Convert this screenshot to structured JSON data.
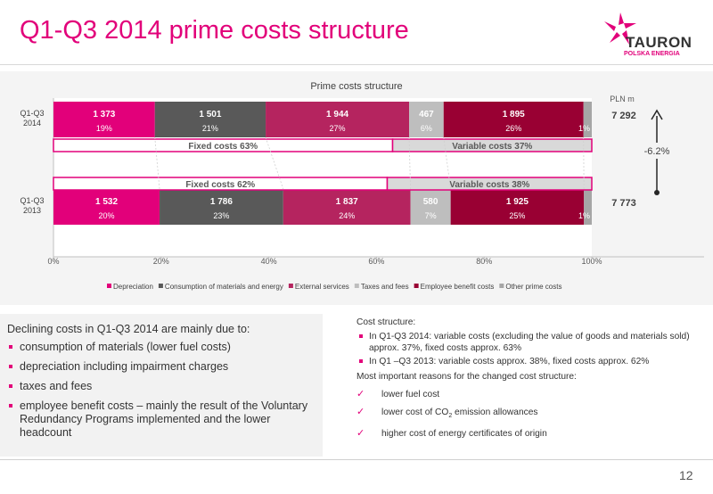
{
  "header": {
    "title": "Q1-Q3 2014 prime costs structure",
    "logo_name": "TAURON",
    "logo_sub": "POLSKA ENERGIA"
  },
  "chart_data": {
    "type": "bar",
    "orientation": "horizontal",
    "stacked": "100%",
    "title": "Prime costs structure",
    "unit_label": "PLN m",
    "categories": [
      "Q1-Q3 2014",
      "Q1-Q3 2013"
    ],
    "category_labels": [
      [
        "Q1-Q3",
        "2014"
      ],
      [
        "Q1-Q3",
        "2013"
      ]
    ],
    "series": [
      {
        "name": "Depreciation",
        "color": "#e2007a",
        "values": [
          1373,
          1532
        ],
        "value_labels": [
          "1 373",
          "1 532"
        ],
        "pct_labels": [
          "19%",
          "20%"
        ]
      },
      {
        "name": "Consumption of materials and energy",
        "color": "#595959",
        "values": [
          1501,
          1786
        ],
        "value_labels": [
          "1 501",
          "1 786"
        ],
        "pct_labels": [
          "21%",
          "23%"
        ]
      },
      {
        "name": "External services",
        "color": "#b5245f",
        "values": [
          1944,
          1837
        ],
        "value_labels": [
          "1 944",
          "1 837"
        ],
        "pct_labels": [
          "27%",
          "24%"
        ]
      },
      {
        "name": "Taxes and fees",
        "color": "#bebebe",
        "values": [
          467,
          580
        ],
        "value_labels": [
          "467",
          "580"
        ],
        "pct_labels": [
          "6%",
          "7%"
        ]
      },
      {
        "name": "Employee benefit costs",
        "color": "#990033",
        "values": [
          1895,
          1925
        ],
        "value_labels": [
          "1 895",
          "1 925"
        ],
        "pct_labels": [
          "26%",
          "25%"
        ]
      },
      {
        "name": "Other prime costs",
        "color": "#a6a6a6",
        "values": [
          112,
          113
        ],
        "value_labels": [
          "",
          ""
        ],
        "pct_labels": [
          "1%",
          "1%"
        ]
      }
    ],
    "totals": [
      7292,
      7773
    ],
    "total_labels": [
      "7 292",
      "7 773"
    ],
    "change_label": "-6.2%",
    "groups": [
      {
        "fixed_label": "Fixed costs 63%",
        "fixed_pct": 63,
        "variable_label": "Variable costs 37%"
      },
      {
        "fixed_label": "Fixed costs 62%",
        "fixed_pct": 62,
        "variable_label": "Variable costs 38%"
      }
    ],
    "x_ticks": [
      "0%",
      "20%",
      "40%",
      "60%",
      "80%",
      "100%"
    ],
    "xlim": [
      0,
      100
    ],
    "legend_position": "bottom"
  },
  "left_panel": {
    "intro": "Declining costs in Q1-Q3 2014 are mainly due to:",
    "items": [
      "consumption of materials (lower fuel costs)",
      "depreciation including impairment charges",
      "taxes and fees",
      "employee benefit costs – mainly the result of the Voluntary Redundancy Programs implemented and the lower headcount"
    ]
  },
  "right_panel": {
    "heading": "Cost structure:",
    "bullets": [
      "In Q1-Q3 2014: variable costs (excluding the value of goods and materials sold) approx. 37%, fixed costs approx. 63%",
      "In Q1 –Q3 2013: variable costs approx. 38%, fixed costs approx. 62%"
    ],
    "reasons_heading": "Most important reasons for the changed cost structure:",
    "checks": [
      "lower fuel cost",
      "lower cost of CO",
      "higher cost of energy certificates of origin"
    ],
    "co2_sub": "2",
    "co2_suffix": " emission allowances",
    "check_glyph": "✓"
  },
  "footer": {
    "page_number": "12"
  }
}
